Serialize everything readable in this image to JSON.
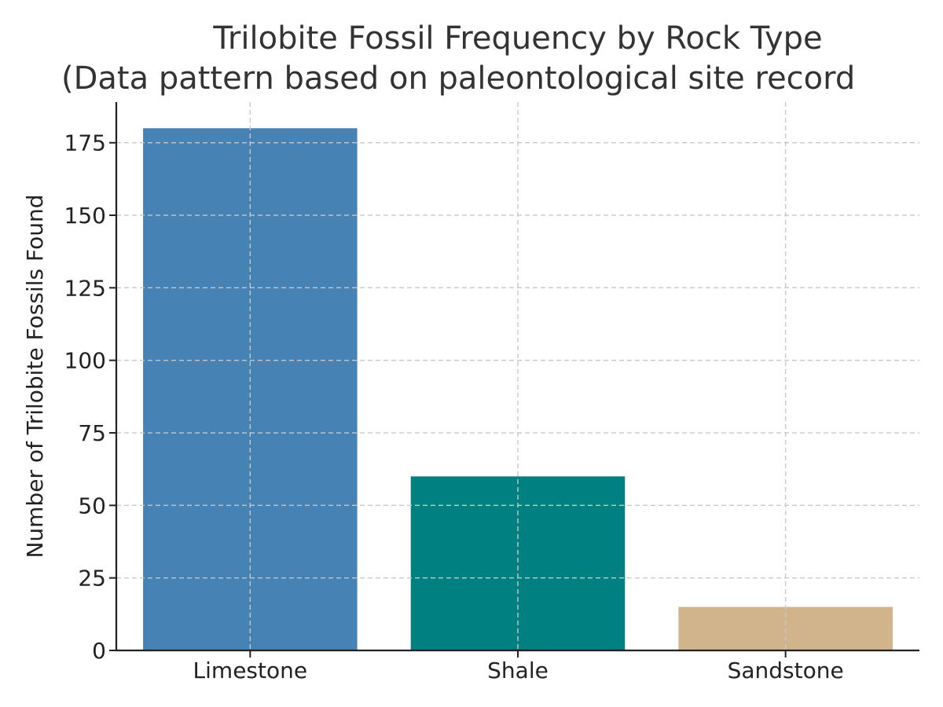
{
  "chart_data": {
    "type": "bar",
    "title_lines": [
      "Trilobite Fossil Frequency by Rock Type",
      "(Data pattern based on paleontological site record"
    ],
    "categories": [
      "Limestone",
      "Shale",
      "Sandstone"
    ],
    "values": [
      180,
      60,
      15
    ],
    "colors": [
      "#4682b4",
      "#008080",
      "#d2b48c"
    ],
    "xlabel": "",
    "ylabel": "Number of Trilobite Fossils Found",
    "ylim": [
      0,
      189
    ],
    "yticks": [
      0,
      25,
      50,
      75,
      100,
      125,
      150,
      175
    ],
    "grid": true
  }
}
